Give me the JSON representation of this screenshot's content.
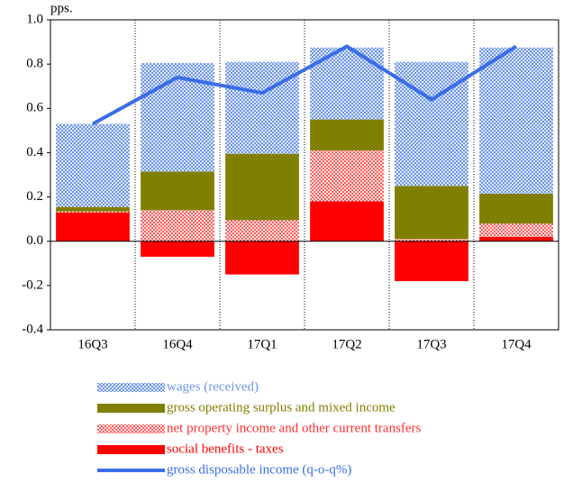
{
  "chart_data": {
    "type": "bar",
    "y_label": "pps.",
    "categories": [
      "16Q3",
      "16Q4",
      "17Q1",
      "17Q2",
      "17Q3",
      "17Q4"
    ],
    "series": [
      {
        "name": "wages (received)",
        "color": "#6f96ea",
        "pattern": "checker",
        "values": [
          0.375,
          0.49,
          0.415,
          0.325,
          0.56,
          0.66
        ]
      },
      {
        "name": "gross operating surplus and mixed income",
        "color": "#808000",
        "pattern": "solid",
        "values": [
          0.02,
          0.175,
          0.3,
          0.14,
          0.24,
          0.135
        ]
      },
      {
        "name": "net property income and other current transfers",
        "color": "#ff3030",
        "pattern": "dots",
        "values": [
          0.005,
          0.14,
          0.095,
          0.23,
          0.01,
          0.06
        ]
      },
      {
        "name": "social benefits - taxes",
        "color": "#ff0000",
        "pattern": "solid",
        "values": [
          0.13,
          -0.07,
          -0.15,
          0.18,
          -0.18,
          0.02
        ]
      },
      {
        "name": "gross disposable income (q-o-q%)",
        "color": "#3a6ee8",
        "type": "line",
        "values": [
          0.53,
          0.74,
          0.67,
          0.88,
          0.64,
          0.88
        ]
      }
    ],
    "ylim": [
      -0.4,
      1.0
    ],
    "yticks": [
      {
        "value": -0.4,
        "label": "-0.4"
      },
      {
        "value": -0.2,
        "label": "-0.2"
      },
      {
        "value": 0,
        "label": "0.0"
      },
      {
        "value": 0.2,
        "label": "0.2"
      },
      {
        "value": 0.4,
        "label": "0.4"
      },
      {
        "value": 0.6,
        "label": "0.6"
      },
      {
        "value": 0.8,
        "label": "0.8"
      },
      {
        "value": 1.0,
        "label": "1.0"
      }
    ],
    "legend": "bottom"
  }
}
